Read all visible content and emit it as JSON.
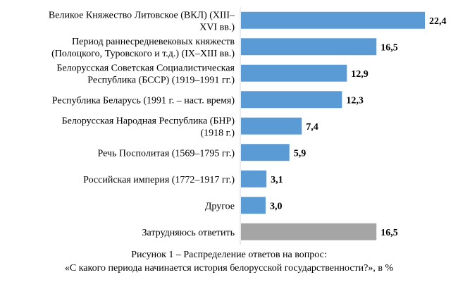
{
  "caption": {
    "line1": "Рисунок 1 – Распределение ответов на вопрос:",
    "line2": "«С какого периода начинается история белорусской государственности?», в %"
  },
  "chart_data": {
    "type": "bar",
    "orientation": "horizontal",
    "categories": [
      [
        "Великое Княжество Литовское (ВКЛ) (XIII–",
        "XVI вв.)"
      ],
      [
        "Период раннесредневековых княжеств",
        "(Полоцкого, Туровского и т.д.) (IX–XIII вв.)"
      ],
      [
        "Белорусская Советская Социалистическая",
        "Республика (БССР) (1919–1991 гг.)"
      ],
      [
        "Республика Беларусь (1991 г. – наст. время)"
      ],
      [
        "Белорусская Народная Республика (БНР)",
        "(1918 г.)"
      ],
      [
        "Речь Посполитая (1569–1795 гг.)"
      ],
      [
        "Российская империя (1772–1917 гг.)"
      ],
      [
        "Другое"
      ],
      [
        "Затрудняюсь ответить"
      ]
    ],
    "values": [
      22.4,
      16.5,
      12.9,
      12.3,
      7.4,
      5.9,
      3.1,
      3.0,
      16.5
    ],
    "value_labels": [
      "22,4",
      "16,5",
      "12,9",
      "12,3",
      "7,4",
      "5,9",
      "3,1",
      "3,0",
      "16,5"
    ],
    "colors": [
      "#5b9bd5",
      "#5b9bd5",
      "#5b9bd5",
      "#5b9bd5",
      "#5b9bd5",
      "#5b9bd5",
      "#5b9bd5",
      "#5b9bd5",
      "#a5a5a5"
    ],
    "axis_color": "#d9d9d9",
    "xlim": [
      0,
      22.4
    ],
    "grid": false,
    "legend": "none"
  }
}
